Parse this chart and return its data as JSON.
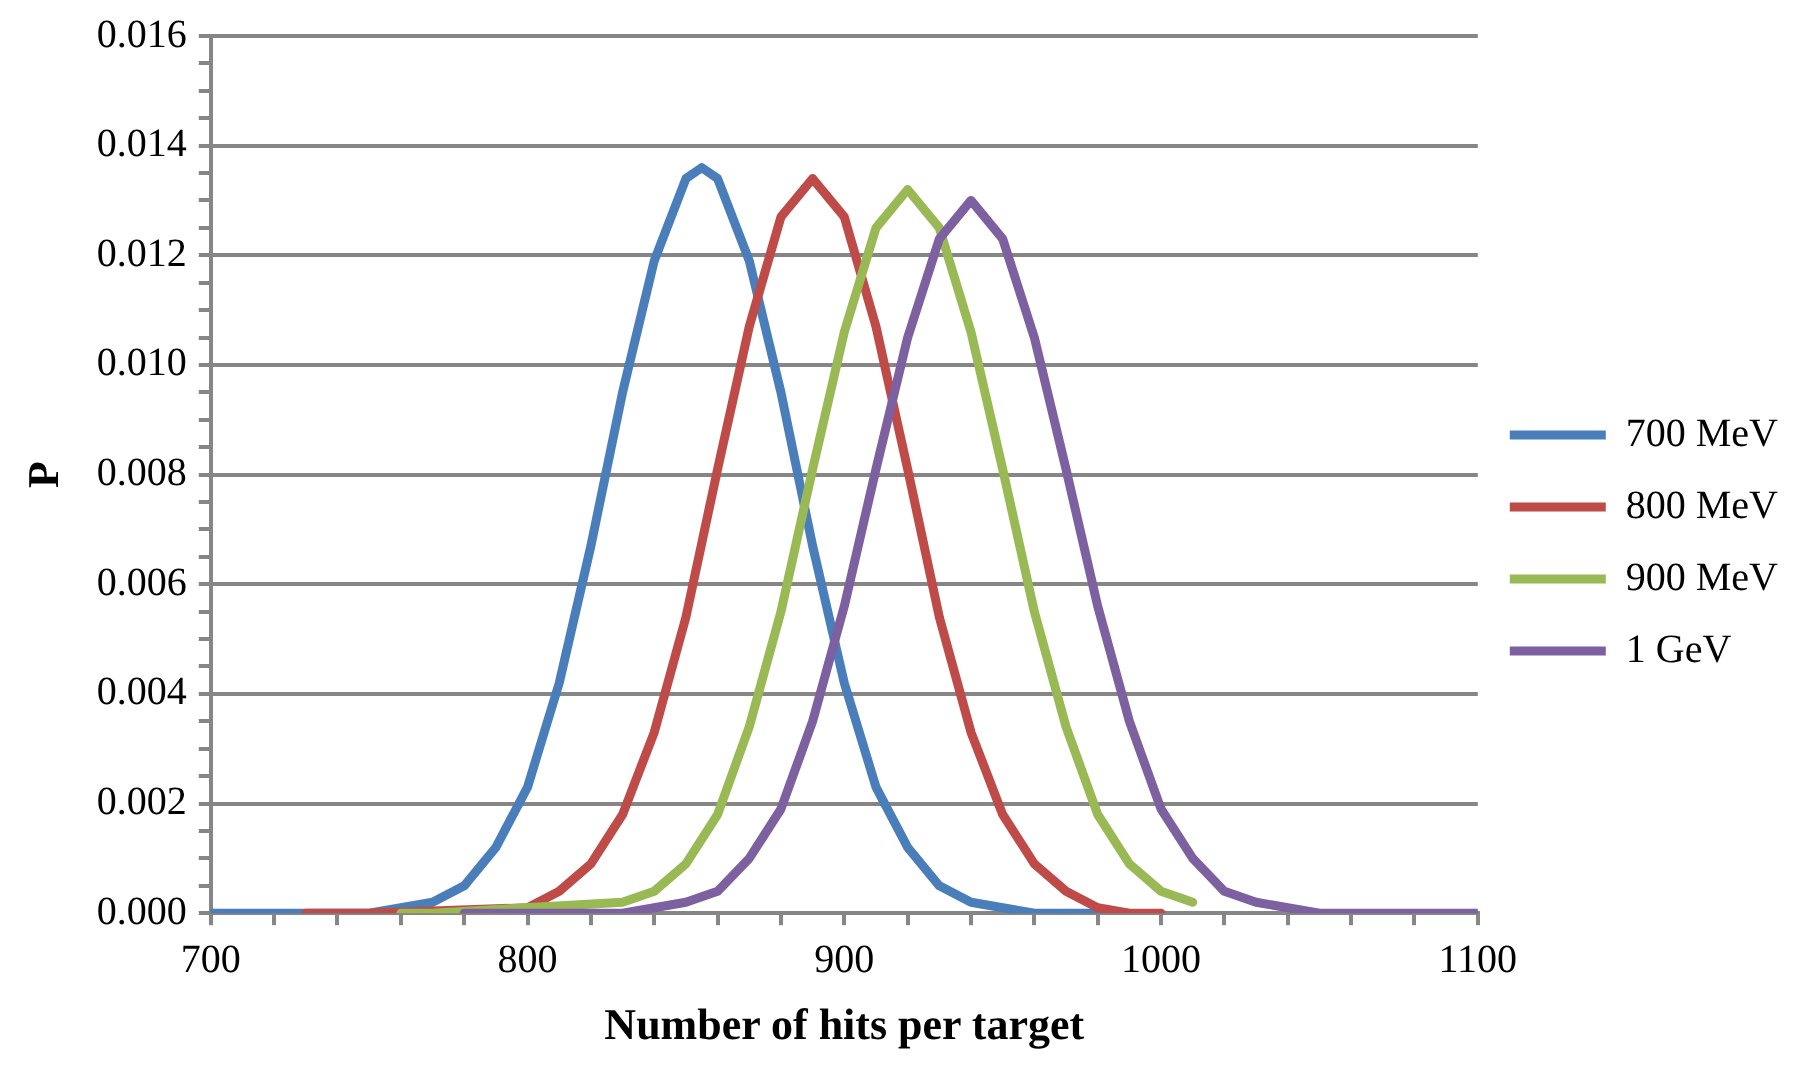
{
  "chart_data": {
    "type": "line",
    "xlabel": "Number of hits per target",
    "ylabel": "P",
    "xlim": [
      700,
      1100
    ],
    "ylim": [
      0,
      0.016
    ],
    "xticks": [
      700,
      {
        "value": 720,
        "label": null
      },
      {
        "value": 740,
        "label": null
      },
      {
        "value": 760,
        "label": null
      },
      {
        "value": 780,
        "label": null
      },
      800,
      {
        "value": 820,
        "label": null
      },
      {
        "value": 840,
        "label": null
      },
      {
        "value": 860,
        "label": null
      },
      {
        "value": 880,
        "label": null
      },
      900,
      {
        "value": 920,
        "label": null
      },
      {
        "value": 940,
        "label": null
      },
      {
        "value": 960,
        "label": null
      },
      {
        "value": 980,
        "label": null
      },
      1000,
      {
        "value": 1020,
        "label": null
      },
      {
        "value": 1040,
        "label": null
      },
      {
        "value": 1060,
        "label": null
      },
      {
        "value": 1080,
        "label": null
      },
      1100
    ],
    "yticks": [
      {
        "value": 0,
        "label": "0.000"
      },
      {
        "value": 0.0005,
        "label": null
      },
      {
        "value": 0.001,
        "label": null
      },
      {
        "value": 0.0015,
        "label": null
      },
      {
        "value": 0.002,
        "label": "0.002"
      },
      {
        "value": 0.0025,
        "label": null
      },
      {
        "value": 0.003,
        "label": null
      },
      {
        "value": 0.0035,
        "label": null
      },
      {
        "value": 0.004,
        "label": "0.004"
      },
      {
        "value": 0.0045,
        "label": null
      },
      {
        "value": 0.005,
        "label": null
      },
      {
        "value": 0.0055,
        "label": null
      },
      {
        "value": 0.006,
        "label": "0.006"
      },
      {
        "value": 0.0065,
        "label": null
      },
      {
        "value": 0.007,
        "label": null
      },
      {
        "value": 0.0075,
        "label": null
      },
      {
        "value": 0.008,
        "label": "0.008"
      },
      {
        "value": 0.0085,
        "label": null
      },
      {
        "value": 0.009,
        "label": null
      },
      {
        "value": 0.0095,
        "label": null
      },
      {
        "value": 0.01,
        "label": "0.010"
      },
      {
        "value": 0.0105,
        "label": null
      },
      {
        "value": 0.011,
        "label": null
      },
      {
        "value": 0.0115,
        "label": null
      },
      {
        "value": 0.012,
        "label": "0.012"
      },
      {
        "value": 0.0125,
        "label": null
      },
      {
        "value": 0.013,
        "label": null
      },
      {
        "value": 0.0135,
        "label": null
      },
      {
        "value": 0.014,
        "label": "0.014"
      },
      {
        "value": 0.0145,
        "label": null
      },
      {
        "value": 0.015,
        "label": null
      },
      {
        "value": 0.0155,
        "label": null
      },
      {
        "value": 0.016,
        "label": "0.016"
      }
    ],
    "grid": "y",
    "legend": "right",
    "marker": "none",
    "line_style": "solid",
    "series": [
      {
        "name": "700 MeV",
        "color": "#4a7ebb",
        "x": [
          700,
          710,
          720,
          730,
          740,
          750,
          760,
          770,
          780,
          790,
          800,
          810,
          820,
          830,
          840,
          850,
          855,
          860,
          870,
          880,
          890,
          900,
          910,
          920,
          930,
          940,
          950,
          960,
          970,
          980
        ],
        "values": [
          0,
          0,
          0,
          0,
          0,
          0,
          0.0001,
          0.0002,
          0.0005,
          0.0012,
          0.0023,
          0.0042,
          0.0067,
          0.0095,
          0.0119,
          0.0134,
          0.0136,
          0.0134,
          0.0119,
          0.0095,
          0.0067,
          0.0042,
          0.0023,
          0.0012,
          0.0005,
          0.0002,
          0.0001,
          0,
          0,
          0
        ]
      },
      {
        "name": "800 MeV",
        "color": "#be4b48",
        "x": [
          730,
          740,
          750,
          800,
          810,
          820,
          830,
          840,
          850,
          860,
          870,
          880,
          890,
          900,
          910,
          920,
          930,
          940,
          950,
          960,
          970,
          980,
          990,
          1000
        ],
        "values": [
          0,
          0,
          0,
          0.0001,
          0.0004,
          0.0009,
          0.0018,
          0.0033,
          0.0054,
          0.0081,
          0.0107,
          0.0127,
          0.0134,
          0.0127,
          0.0107,
          0.0081,
          0.0054,
          0.0033,
          0.0018,
          0.0009,
          0.0004,
          0.0001,
          0,
          0
        ]
      },
      {
        "name": "900 MeV",
        "color": "#98b954",
        "x": [
          760,
          770,
          830,
          840,
          850,
          860,
          870,
          880,
          890,
          900,
          910,
          920,
          930,
          940,
          950,
          960,
          970,
          980,
          990,
          1000,
          1010
        ],
        "values": [
          0,
          0,
          0.0002,
          0.0004,
          0.0009,
          0.0018,
          0.0034,
          0.0055,
          0.0081,
          0.0106,
          0.0125,
          0.0132,
          0.0125,
          0.0106,
          0.0081,
          0.0055,
          0.0034,
          0.0018,
          0.0009,
          0.0004,
          0.0002
        ]
      },
      {
        "name": "1 GeV",
        "color": "#7d60a0",
        "x": [
          780,
          790,
          800,
          810,
          820,
          830,
          840,
          850,
          860,
          870,
          880,
          890,
          900,
          910,
          920,
          930,
          940,
          950,
          960,
          970,
          980,
          990,
          1000,
          1010,
          1020,
          1030,
          1040,
          1050,
          1060,
          1070,
          1080,
          1090,
          1100
        ],
        "values": [
          0,
          0,
          0,
          0,
          0,
          0,
          0.0001,
          0.0002,
          0.0004,
          0.001,
          0.0019,
          0.0035,
          0.0056,
          0.0081,
          0.0105,
          0.0123,
          0.013,
          0.0123,
          0.0105,
          0.0081,
          0.0056,
          0.0035,
          0.0019,
          0.001,
          0.0004,
          0.0002,
          0.0001,
          0,
          0,
          0,
          0,
          0,
          0
        ]
      }
    ]
  }
}
